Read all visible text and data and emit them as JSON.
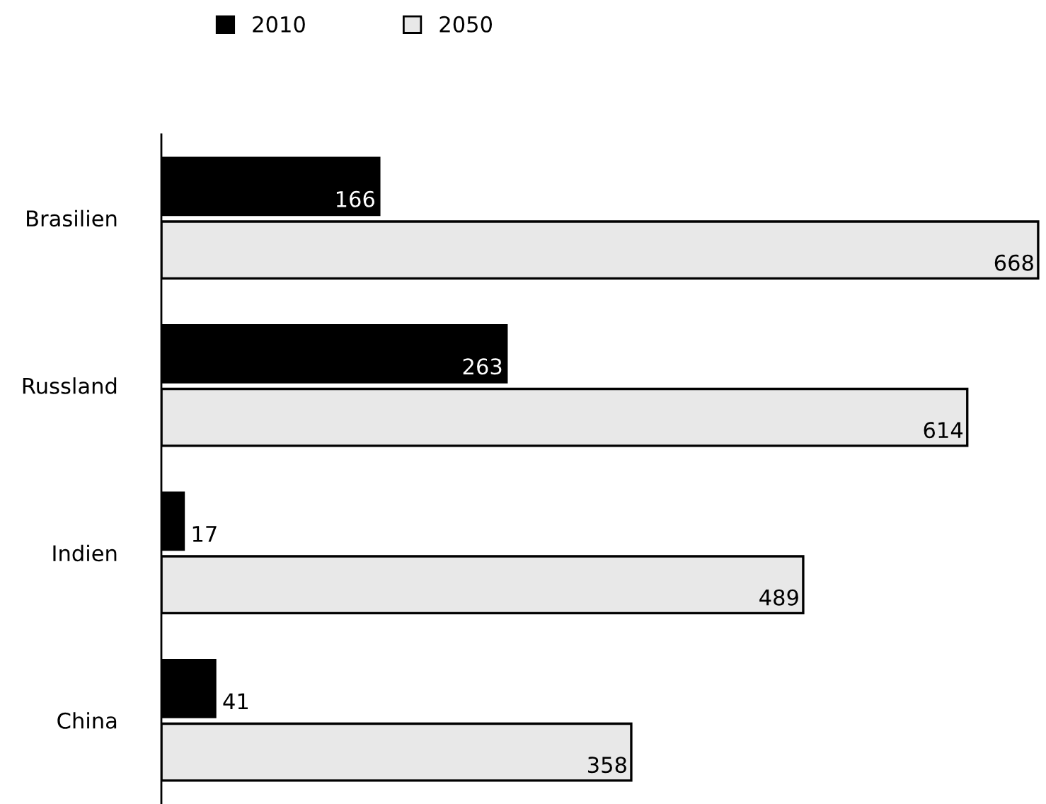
{
  "chart_data": {
    "type": "bar",
    "orientation": "horizontal",
    "categories": [
      "Brasilien",
      "Russland",
      "Indien",
      "China"
    ],
    "series": [
      {
        "name": "2010",
        "color": "#000000",
        "values": [
          166,
          263,
          17,
          41
        ]
      },
      {
        "name": "2050",
        "color": "#e8e8e8",
        "values": [
          668,
          614,
          489,
          358
        ]
      }
    ],
    "data_labels": true,
    "legend": "top left",
    "grid": false
  }
}
